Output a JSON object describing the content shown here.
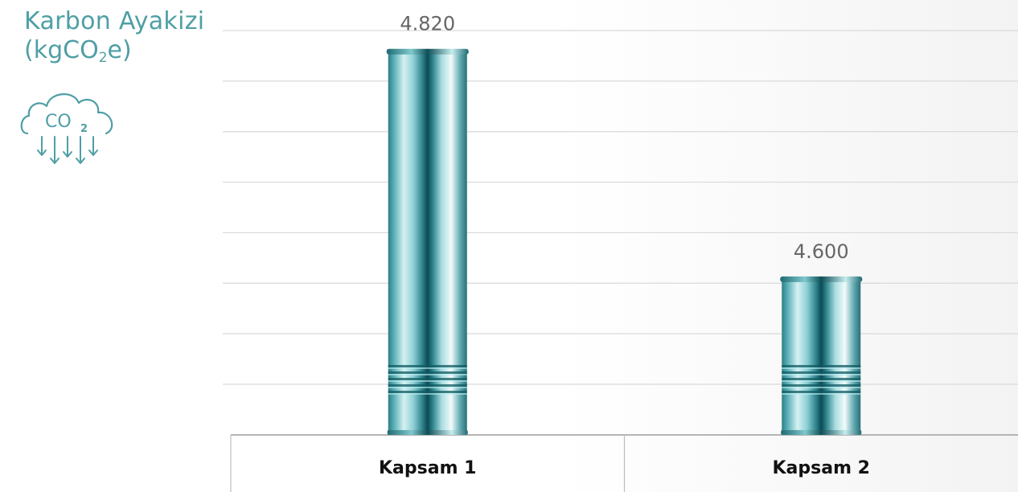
{
  "header": {
    "title": "Karbon Ayakizi",
    "unit_prefix": "(kgCO",
    "unit_sub": "2",
    "unit_suffix": "e)",
    "icon": "co2-cloud-icon",
    "icon_text": "CO",
    "icon_text_sub": "2"
  },
  "colors": {
    "title": "#4f9fa5",
    "bar_teal": "#2d8c95",
    "gridline": "#d9d9d9",
    "value_label": "#666666",
    "category_label": "#111111"
  },
  "chart_data": {
    "type": "bar",
    "categories": [
      "Kapsam 1",
      "Kapsam 2"
    ],
    "values": [
      4.82,
      4.6
    ],
    "value_labels": [
      "4.820",
      "4.600"
    ],
    "title": "Karbon Ayakizi",
    "ylabel": "(kgCO2e)",
    "ylim": [
      4.45,
      4.84
    ],
    "grid": true,
    "bar_style": "metal-can"
  }
}
